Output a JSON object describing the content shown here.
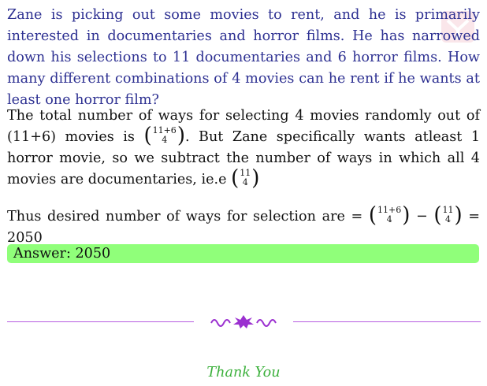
{
  "question": {
    "text": "Zane is picking out some movies to rent, and he is primarily interested in documentaries and horror films. He has narrowed down his selections to 11 documentaries and 6 horror films. How many different combinations of 4 movies can he rent if he wants at least one horror film?"
  },
  "solution": {
    "part1": "The total number of ways for selecting 4 movies randomly out of (11+6) movies is",
    "binom_total_top": "11+6",
    "binom_total_bottom": "4",
    "part2": ". But Zane specifically wants atleast 1 horror movie, so we subtract the number of ways in which all 4 movies are documentaries, ie.e",
    "binom_doc_top": "11",
    "binom_doc_bottom": "4"
  },
  "conclusion": {
    "lead": "Thus desired number of ways for selection are =",
    "binom_a_top": "11+6",
    "binom_a_bottom": "4",
    "minus": "−",
    "binom_b_top": "11",
    "binom_b_bottom": "4",
    "result": "= 2050"
  },
  "answer": {
    "label": "Answer: 2050"
  },
  "footer": {
    "thanks": "Thank You"
  },
  "colors": {
    "question": "#2e3192",
    "answer_bg": "#90ff7a",
    "rule": "#b65ce0",
    "ornament": "#9b30d0",
    "thanks": "#3bb03b"
  }
}
